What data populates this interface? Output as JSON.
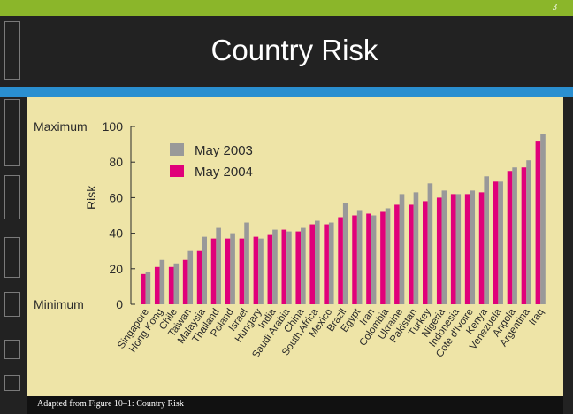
{
  "slide": {
    "page_number": "3",
    "title": "Country Risk",
    "footer": "Adapted from Figure 10–1: Country Risk"
  },
  "colors": {
    "may2003": "#999999",
    "may2004": "#e0007a",
    "panel": "#eee4a7",
    "accent_green": "#8bb62a",
    "accent_blue": "#2a8fd0"
  },
  "chart_data": {
    "type": "bar",
    "ylabel": "Risk",
    "ylim": [
      0,
      100
    ],
    "yticks": [
      {
        "value": 0,
        "label": "0"
      },
      {
        "value": 20,
        "label": "20"
      },
      {
        "value": 40,
        "label": "40"
      },
      {
        "value": 60,
        "label": "60"
      },
      {
        "value": 80,
        "label": "80"
      },
      {
        "value": 100,
        "label": "100"
      }
    ],
    "axis_annotations": [
      {
        "value": 100,
        "text": "Maximum"
      },
      {
        "value": 0,
        "text": "Minimum"
      }
    ],
    "legend_position": "top-left",
    "categories": [
      "Singapore",
      "Hong Kong",
      "Chile",
      "Taiwan",
      "Malaysia",
      "Thailand",
      "Poland",
      "Israel",
      "Hungary",
      "India",
      "Saudi Arabia",
      "China",
      "South Africa",
      "Mexico",
      "Brazil",
      "Egypt",
      "Iran",
      "Colombia",
      "Ukraine",
      "Pakistan",
      "Turkey",
      "Nigeria",
      "Indonesia",
      "Cote d'Ivoire",
      "Kenya",
      "Venezuela",
      "Angola",
      "Argentina",
      "Iraq"
    ],
    "series": [
      {
        "name": "May 2003",
        "values": [
          18,
          25,
          23,
          30,
          38,
          43,
          40,
          46,
          37,
          42,
          41,
          43,
          47,
          46,
          57,
          53,
          50,
          54,
          62,
          63,
          68,
          64,
          62,
          64,
          72,
          69,
          77,
          81,
          96
        ]
      },
      {
        "name": "May 2004",
        "values": [
          17,
          21,
          21,
          25,
          30,
          37,
          37,
          37,
          38,
          39,
          42,
          41,
          45,
          45,
          49,
          50,
          51,
          52,
          56,
          56,
          58,
          60,
          62,
          62,
          63,
          69,
          75,
          77,
          92
        ]
      }
    ]
  }
}
